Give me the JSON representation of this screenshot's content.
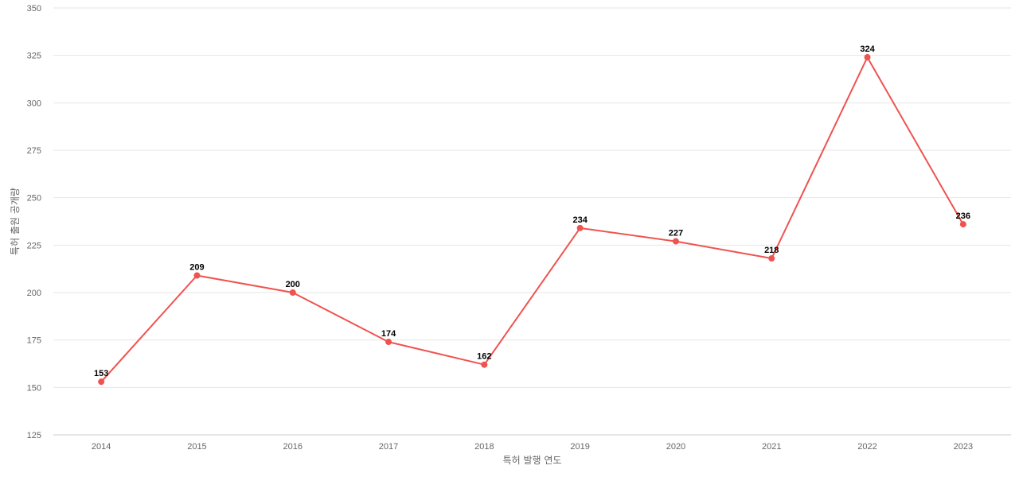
{
  "chart_data": {
    "type": "line",
    "title": "",
    "xlabel": "특허 발행 연도",
    "ylabel": "특허 출원 공개량",
    "categories": [
      "2014",
      "2015",
      "2016",
      "2017",
      "2018",
      "2019",
      "2020",
      "2021",
      "2022",
      "2023"
    ],
    "series": [
      {
        "values": [
          153,
          209,
          200,
          174,
          162,
          234,
          227,
          218,
          324,
          236
        ],
        "color": "#ef5350"
      }
    ],
    "ylim": [
      125,
      350
    ],
    "yticks": [
      125,
      150,
      175,
      200,
      225,
      250,
      275,
      300,
      325,
      350
    ],
    "grid": true,
    "data_labels": true,
    "legend": "none"
  }
}
